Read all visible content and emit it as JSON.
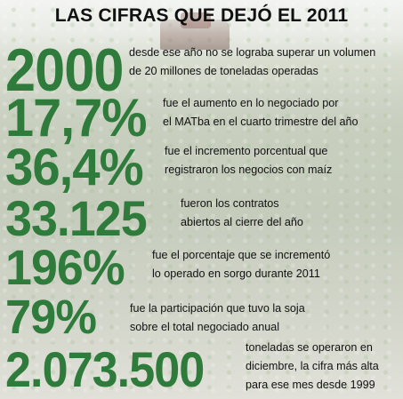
{
  "title": "LAS CIFRAS QUE DEJÓ EL 2011",
  "stats": [
    {
      "value": "2000",
      "line1": "desde ese año no se lograba superar un volumen",
      "line2": "de 20 millones de toneladas operadas"
    },
    {
      "value": "17,7%",
      "line1": "fue el aumento en lo negociado por",
      "line2": "el MATba en el cuarto trimestre del año"
    },
    {
      "value": "36,4%",
      "line1": "fue el incremento porcentual que",
      "line2": "registraron los negocios con maíz"
    },
    {
      "value": "33.125",
      "line1": "fueron los contratos",
      "line2": "abiertos al cierre del año"
    },
    {
      "value": "196%",
      "line1": "fue el porcentaje que se incrementó",
      "line2": "lo operado en sorgo durante 2011"
    },
    {
      "value": "79%",
      "line1": "fue la participación que tuvo la soja",
      "line2": "sobre el total negociado anual"
    },
    {
      "value": "2.073.500",
      "line1": "toneladas se operaron en",
      "line2": "diciembre, la cifra más alta",
      "line3": "para ese mes desde 1999"
    }
  ]
}
